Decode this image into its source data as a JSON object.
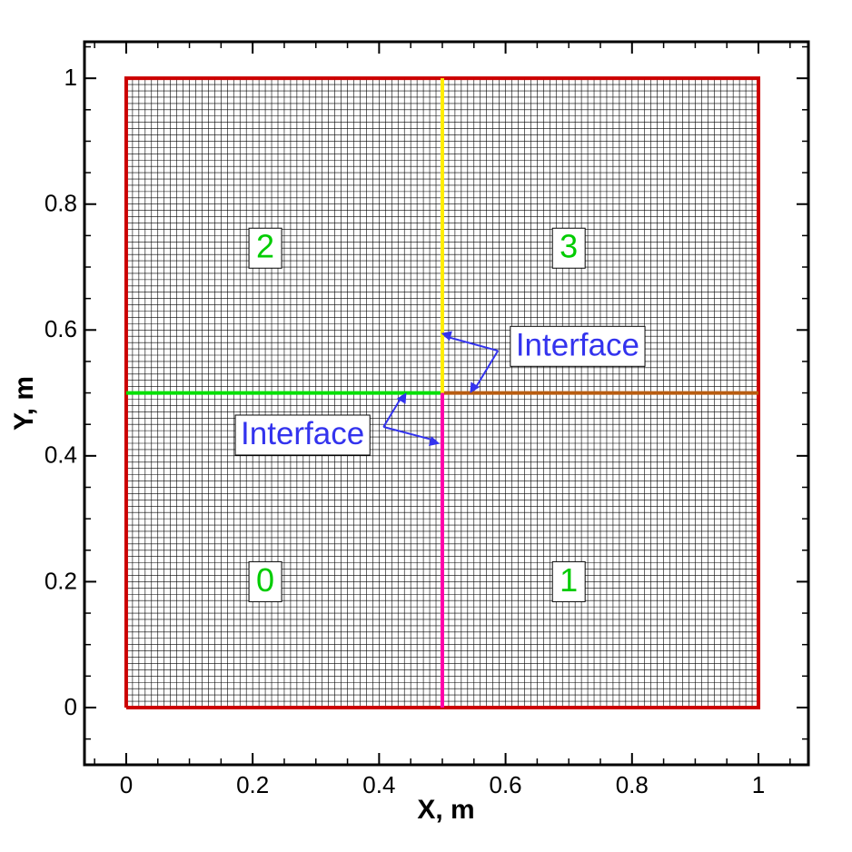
{
  "chart_data": {
    "type": "mesh",
    "xlabel": "X, m",
    "ylabel": "Y, m",
    "xlim": [
      -0.066,
      1.079
    ],
    "ylim": [
      -0.091,
      1.058
    ],
    "xticks": [
      0,
      0.2,
      0.4,
      0.6,
      0.8,
      1
    ],
    "yticks": [
      0,
      0.2,
      0.4,
      0.6,
      0.8,
      1
    ],
    "minor_xticks": [
      -0.05,
      0.05,
      0.1,
      0.15,
      0.25,
      0.3,
      0.35,
      0.45,
      0.5,
      0.55,
      0.65,
      0.7,
      0.75,
      0.85,
      0.9,
      0.95,
      1.05
    ],
    "minor_yticks": [
      -0.05,
      0.05,
      0.1,
      0.15,
      0.25,
      0.3,
      0.35,
      0.45,
      0.5,
      0.55,
      0.65,
      0.7,
      0.75,
      0.85,
      0.9,
      0.95,
      1.05
    ],
    "mesh": {
      "x": [
        0,
        1
      ],
      "y": [
        0,
        1
      ],
      "nx": 100,
      "ny": 100,
      "color": "#000000"
    },
    "lines": [
      {
        "color": "#cc0000",
        "x": [
          0,
          1,
          1,
          0,
          0
        ],
        "y": [
          0,
          0,
          1,
          1,
          0
        ]
      },
      {
        "color": "#00e000",
        "x": [
          0,
          0.5
        ],
        "y": [
          0.5,
          0.5
        ]
      },
      {
        "color": "#b85c10",
        "x": [
          0.5,
          1
        ],
        "y": [
          0.5,
          0.5
        ]
      },
      {
        "color": "#ffee00",
        "x": [
          0.5,
          0.5
        ],
        "y": [
          0.5,
          1
        ]
      },
      {
        "color": "#ff00aa",
        "x": [
          0.5,
          0.5
        ],
        "y": [
          0,
          0.5
        ]
      }
    ],
    "block_labels": [
      {
        "text": "0",
        "x": 0.22,
        "y": 0.2
      },
      {
        "text": "1",
        "x": 0.7,
        "y": 0.2
      },
      {
        "text": "2",
        "x": 0.22,
        "y": 0.73
      },
      {
        "text": "3",
        "x": 0.7,
        "y": 0.73
      }
    ],
    "block_label_color": "#00cc00",
    "annotations": [
      {
        "text": "Interface",
        "x": 0.714,
        "y": 0.574,
        "arrows": [
          {
            "x": [
              0.588,
              0.504
            ],
            "y": [
              0.567,
              0.59
            ]
          },
          {
            "x": [
              0.588,
              0.55
            ],
            "y": [
              0.567,
              0.504
            ]
          }
        ]
      },
      {
        "text": "Interface",
        "x": 0.279,
        "y": 0.433,
        "arrows": [
          {
            "x": [
              0.407,
              0.437
            ],
            "y": [
              0.446,
              0.496
            ]
          },
          {
            "x": [
              0.407,
              0.49
            ],
            "y": [
              0.446,
              0.424
            ]
          }
        ]
      }
    ],
    "annotation_color": "#3333ee"
  }
}
